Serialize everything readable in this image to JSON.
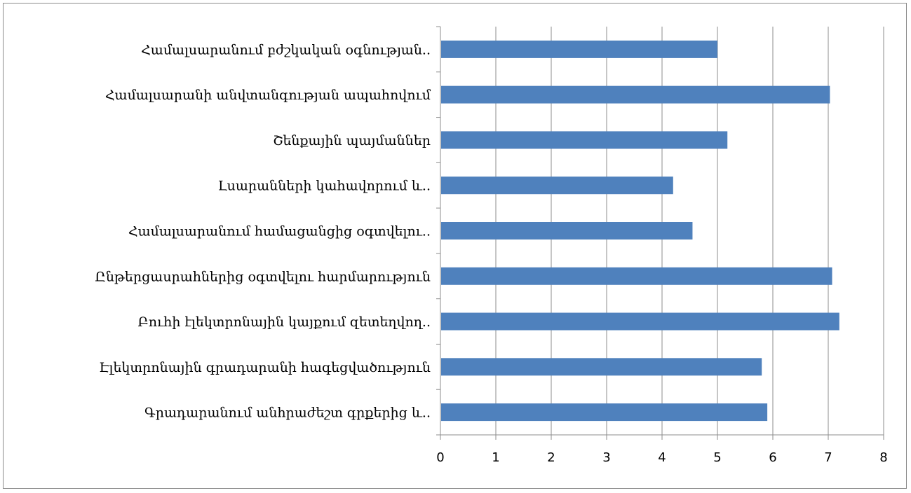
{
  "chart_data": {
    "type": "bar",
    "orientation": "horizontal",
    "categories": [
      "Գրադարանում անհրաժեշտ գրքերից և..",
      "Էլեկտրոնային գրադարանի հագեցվածություն",
      "Բուհի էլեկտրոնային կայքում զետեղվող..",
      "Ընթերցասրահներից օգտվելու հարմարություն",
      "Համալսարանում համացանցից օգտվելու..",
      "Լսարանների կահավորում և..",
      "Շենքային պայմաններ",
      "Համալսարանի անվտանգության ապահովում",
      "Համալսարանում բժշկական օգնության.."
    ],
    "values": [
      5.9,
      5.8,
      7.2,
      7.07,
      4.55,
      4.2,
      5.18,
      7.03,
      5.0
    ],
    "x_ticks": [
      "0",
      "1",
      "2",
      "3",
      "4",
      "5",
      "6",
      "7",
      "8"
    ],
    "xlim": [
      0,
      8
    ],
    "grid": "vertical",
    "legend": "none",
    "title": "",
    "xlabel": "",
    "ylabel": "",
    "colors": {
      "bar": "#4f81bd",
      "grid": "#8c8c8c",
      "axis": "#8c8c8c",
      "frame": "#8c8c8c"
    }
  }
}
